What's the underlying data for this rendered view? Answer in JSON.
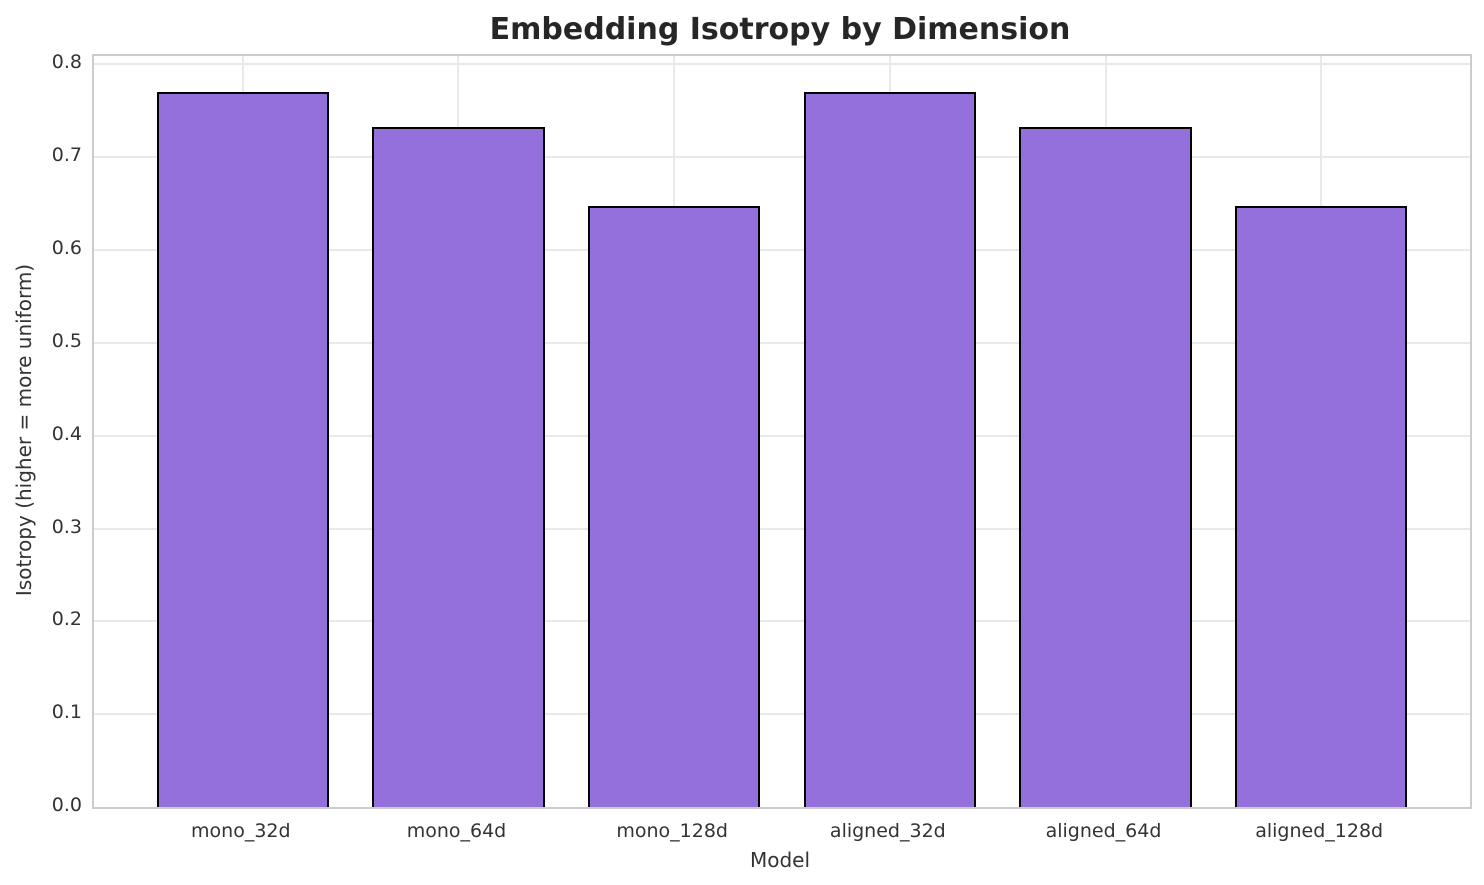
{
  "chart_data": {
    "type": "bar",
    "title": "Embedding Isotropy by Dimension",
    "xlabel": "Model",
    "ylabel": "Isotropy (higher = more uniform)",
    "categories": [
      "mono_32d",
      "mono_64d",
      "mono_128d",
      "aligned_32d",
      "aligned_64d",
      "aligned_128d"
    ],
    "values": [
      0.77,
      0.733,
      0.647,
      0.77,
      0.733,
      0.647
    ],
    "ylim": [
      0,
      0.809
    ],
    "yticks": [
      0,
      0.1,
      0.2,
      0.3,
      0.4,
      0.5,
      0.6,
      0.7,
      0.8
    ],
    "ytick_labels": [
      "0.0",
      "0.1",
      "0.2",
      "0.3",
      "0.4",
      "0.5",
      "0.6",
      "0.7",
      "0.8"
    ],
    "grid": true,
    "legend": "none",
    "bar_width_frac": 0.8,
    "x_margin_units": 0.69,
    "colors": {
      "bar_fill": "#9370DB",
      "bar_edge": "#000000",
      "gridline": "#e9e9e9",
      "spine": "#cccccc",
      "tick_text": "#333333",
      "title_text": "#262626",
      "background": "#ffffff"
    }
  }
}
